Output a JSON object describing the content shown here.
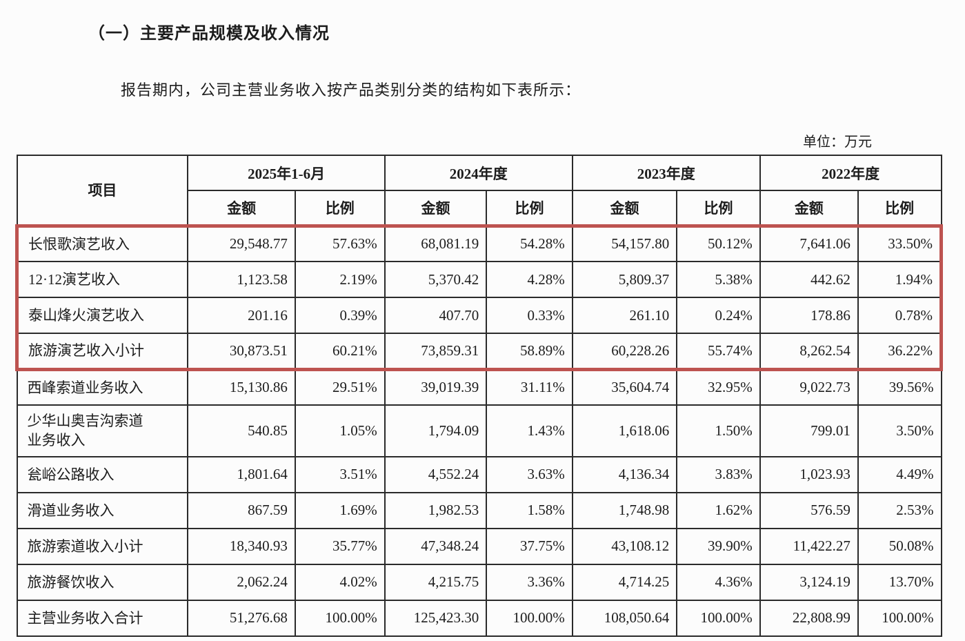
{
  "page": {
    "section_title": "（一）主要产品规模及收入情况",
    "intro": "报告期内，公司主营业务收入按产品类别分类的结构如下表所示：",
    "unit_note": "单位：万元"
  },
  "colors": {
    "highlight_border": "#bd5350",
    "grid_line": "#2a2a2a"
  },
  "table": {
    "item_header": "项目",
    "col_groups": [
      {
        "label": "2025年1-6月"
      },
      {
        "label": "2024年度"
      },
      {
        "label": "2023年度"
      },
      {
        "label": "2022年度"
      }
    ],
    "sub_headers": [
      "金额",
      "比例"
    ],
    "rows": [
      {
        "item": "长恨歌演艺收入",
        "values": [
          "29,548.77",
          "57.63%",
          "68,081.19",
          "54.28%",
          "54,157.80",
          "50.12%",
          "7,641.06",
          "33.50%"
        ],
        "highlight": true
      },
      {
        "item": "12·12演艺收入",
        "values": [
          "1,123.58",
          "2.19%",
          "5,370.42",
          "4.28%",
          "5,809.37",
          "5.38%",
          "442.62",
          "1.94%"
        ],
        "highlight": true
      },
      {
        "item": "泰山烽火演艺收入",
        "values": [
          "201.16",
          "0.39%",
          "407.70",
          "0.33%",
          "261.10",
          "0.24%",
          "178.86",
          "0.78%"
        ],
        "highlight": true
      },
      {
        "item": "旅游演艺收入小计",
        "values": [
          "30,873.51",
          "60.21%",
          "73,859.31",
          "58.89%",
          "60,228.26",
          "55.74%",
          "8,262.54",
          "36.22%"
        ],
        "highlight": true
      },
      {
        "item": "西峰索道业务收入",
        "values": [
          "15,130.86",
          "29.51%",
          "39,019.39",
          "31.11%",
          "35,604.74",
          "32.95%",
          "9,022.73",
          "39.56%"
        ],
        "highlight": false
      },
      {
        "item": "少华山奥吉沟索道\n业务收入",
        "values": [
          "540.85",
          "1.05%",
          "1,794.09",
          "1.43%",
          "1,618.06",
          "1.50%",
          "799.01",
          "3.50%"
        ],
        "highlight": false
      },
      {
        "item": "瓮峪公路收入",
        "values": [
          "1,801.64",
          "3.51%",
          "4,552.24",
          "3.63%",
          "4,136.34",
          "3.83%",
          "1,023.93",
          "4.49%"
        ],
        "highlight": false
      },
      {
        "item": "滑道业务收入",
        "values": [
          "867.59",
          "1.69%",
          "1,982.53",
          "1.58%",
          "1,748.98",
          "1.62%",
          "576.59",
          "2.53%"
        ],
        "highlight": false
      },
      {
        "item": "旅游索道收入小计",
        "values": [
          "18,340.93",
          "35.77%",
          "47,348.24",
          "37.75%",
          "43,108.12",
          "39.90%",
          "11,422.27",
          "50.08%"
        ],
        "highlight": false
      },
      {
        "item": "旅游餐饮收入",
        "values": [
          "2,062.24",
          "4.02%",
          "4,215.75",
          "3.36%",
          "4,714.25",
          "4.36%",
          "3,124.19",
          "13.70%"
        ],
        "highlight": false
      },
      {
        "item": "主营业务收入合计",
        "values": [
          "51,276.68",
          "100.00%",
          "125,423.30",
          "100.00%",
          "108,050.64",
          "100.00%",
          "22,808.99",
          "100.00%"
        ],
        "highlight": false
      }
    ]
  }
}
